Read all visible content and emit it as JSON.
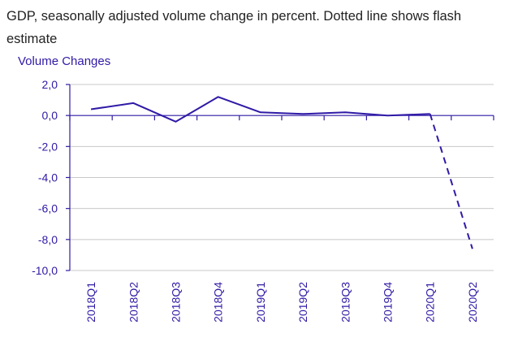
{
  "chart_data": {
    "type": "line",
    "title": "GDP, seasonally adjusted volume change in percent. Dotted line shows flash estimate",
    "ylabel": "Volume Changes",
    "xlabel": "",
    "categories": [
      "2018Q1",
      "2018Q2",
      "2018Q3",
      "2018Q4",
      "2019Q1",
      "2019Q2",
      "2019Q3",
      "2019Q4",
      "2020Q1",
      "2020Q2"
    ],
    "series": [
      {
        "values": [
          0.4,
          0.8,
          -0.4,
          1.2,
          0.2,
          0.1,
          0.2,
          0.0,
          0.1,
          -8.6
        ],
        "flash_estimate_last_segment": true
      }
    ],
    "ylim": [
      -10,
      2
    ],
    "yticks": [
      "2,0",
      "0,0",
      "-2,0",
      "-4,0",
      "-6,0",
      "-8,0",
      "-10,0"
    ],
    "ytick_values": [
      2,
      0,
      -2,
      -4,
      -6,
      -8,
      -10
    ],
    "grid": true,
    "legend": "none",
    "colors": {
      "line": "#2f1aa6",
      "axis": "#2f1aa6",
      "grid": "#c8c8c8",
      "title": "#222222"
    }
  }
}
